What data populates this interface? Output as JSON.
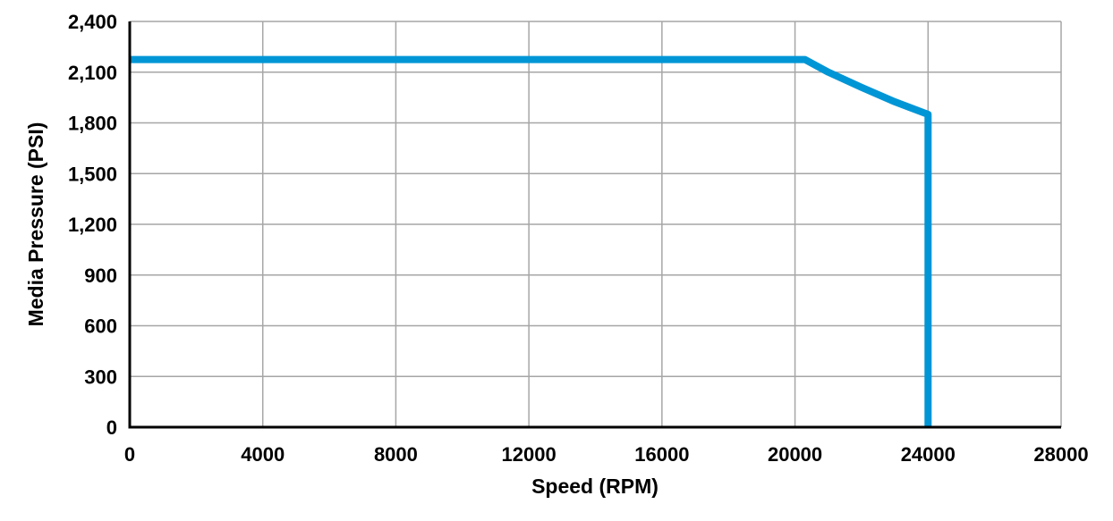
{
  "chart_data": {
    "type": "line",
    "title": "",
    "xlabel": "Speed (RPM)",
    "ylabel": "Media Pressure (PSI)",
    "xlim": [
      0,
      28000
    ],
    "ylim": [
      0,
      2400
    ],
    "x_ticks": [
      0,
      4000,
      8000,
      12000,
      16000,
      20000,
      24000,
      28000
    ],
    "x_tick_labels": [
      "0",
      "4000",
      "8000",
      "12000",
      "16000",
      "20000",
      "24000",
      "28000"
    ],
    "y_ticks": [
      0,
      300,
      600,
      900,
      1200,
      1500,
      1800,
      2100,
      2400
    ],
    "y_tick_labels": [
      "0",
      "300",
      "600",
      "900",
      "1,200",
      "1,500",
      "1,800",
      "2,100",
      "2,400"
    ],
    "grid": true,
    "legend": "none",
    "series": [
      {
        "color": "#0096d6",
        "x": [
          0,
          20300,
          21000,
          22000,
          23000,
          24000,
          24000
        ],
        "y": [
          2175,
          2175,
          2100,
          2010,
          1925,
          1850,
          0
        ]
      }
    ]
  }
}
